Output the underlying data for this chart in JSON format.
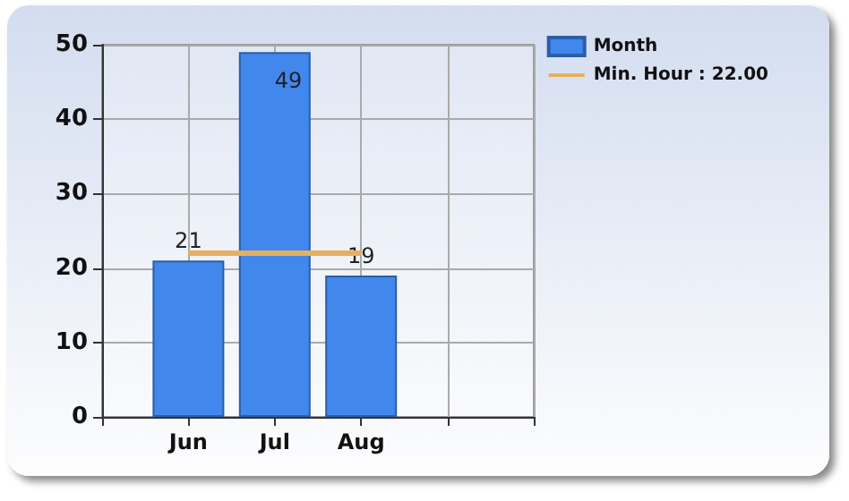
{
  "chart_data": {
    "type": "bar",
    "categories": [
      null,
      "Jun",
      "Jul",
      "Aug",
      null,
      null
    ],
    "series": [
      {
        "name": "Month",
        "color": "#4287ec",
        "values": [
          null,
          21,
          49,
          19,
          null,
          null
        ],
        "value_labels": [
          null,
          "21",
          "49",
          "19",
          null,
          null
        ]
      },
      {
        "name": "Min. Hour : 22.00",
        "type": "line",
        "color": "#e5b060",
        "values": [
          null,
          22,
          22,
          22,
          null,
          null
        ]
      }
    ],
    "ylim": [
      0,
      50
    ],
    "yticks": [
      0,
      10,
      20,
      30,
      40,
      50
    ],
    "grid": true,
    "legend": "top right",
    "marker": "none"
  }
}
